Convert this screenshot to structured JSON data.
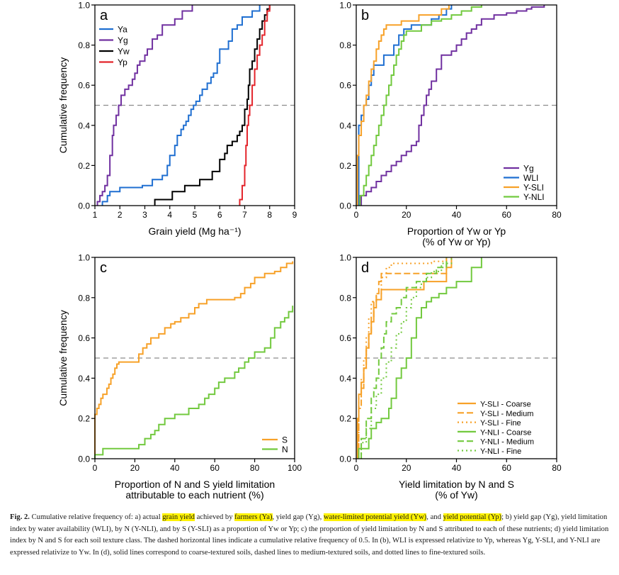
{
  "colors": {
    "orange": "#f7a128",
    "green": "#72c93e",
    "purple": "#7030a0",
    "blue": "#1f6fd1",
    "black": "#000000",
    "red": "#e3242b",
    "dash": "#8c8c8c",
    "highlight": "#fff200"
  },
  "chart_data": [
    {
      "panel": "a",
      "type": "line",
      "step": true,
      "xlabel": "Grain yield (Mg ha⁻¹)",
      "ylabel": "Cumulative frequency",
      "xlim": [
        1,
        9
      ],
      "ylim": [
        0,
        1
      ],
      "xticks": [
        1,
        2,
        3,
        4,
        5,
        6,
        7,
        8,
        9
      ],
      "xtick_labels": [
        "1",
        "2",
        "3",
        "4",
        "5",
        "6",
        "7",
        "8",
        "9"
      ],
      "yticks": [
        0,
        0.2,
        0.4,
        0.6,
        0.8,
        1.0
      ],
      "ytick_labels": [
        "0.0",
        "0.2",
        "0.4",
        "0.6",
        "0.8",
        "1.0"
      ],
      "hline": 0.5,
      "legend_position": "top-left",
      "series": [
        {
          "name": "Ya",
          "color": "#1f6fd1",
          "style": "solid",
          "x": [
            1.3,
            1.5,
            1.6,
            1.8,
            2.0,
            2.4,
            2.9,
            3.3,
            3.7,
            3.9,
            4.0,
            4.2,
            4.3,
            4.45,
            4.55,
            4.65,
            4.75,
            4.85,
            4.95,
            5.05,
            5.2,
            5.3,
            5.5,
            5.65,
            5.75,
            5.9,
            6.0,
            6.35,
            6.5,
            6.7,
            6.9,
            7.3,
            7.6
          ],
          "y": [
            0.02,
            0.05,
            0.07,
            0.07,
            0.09,
            0.09,
            0.1,
            0.13,
            0.15,
            0.2,
            0.25,
            0.3,
            0.35,
            0.38,
            0.4,
            0.42,
            0.45,
            0.48,
            0.5,
            0.52,
            0.55,
            0.58,
            0.61,
            0.64,
            0.66,
            0.71,
            0.78,
            0.82,
            0.88,
            0.9,
            0.94,
            0.97,
            1.0
          ]
        },
        {
          "name": "Yg",
          "color": "#7030a0",
          "style": "solid",
          "x": [
            1.1,
            1.2,
            1.3,
            1.4,
            1.5,
            1.6,
            1.7,
            1.75,
            1.85,
            1.95,
            2.05,
            2.2,
            2.35,
            2.5,
            2.6,
            2.7,
            2.8,
            3.0,
            3.1,
            3.3,
            3.5,
            3.7,
            3.9,
            4.2,
            4.5,
            4.9
          ],
          "y": [
            0.02,
            0.05,
            0.07,
            0.1,
            0.15,
            0.25,
            0.35,
            0.4,
            0.45,
            0.5,
            0.55,
            0.58,
            0.6,
            0.63,
            0.66,
            0.7,
            0.72,
            0.75,
            0.78,
            0.83,
            0.85,
            0.9,
            0.9,
            0.93,
            0.97,
            1.0
          ]
        },
        {
          "name": "Yw",
          "color": "#000000",
          "style": "solid",
          "x": [
            3.4,
            4.1,
            4.6,
            5.2,
            5.7,
            6.0,
            6.2,
            6.3,
            6.5,
            6.7,
            6.8,
            6.9,
            7.0,
            7.1,
            7.15,
            7.2,
            7.3,
            7.4,
            7.5,
            7.6,
            7.7,
            7.8,
            7.9,
            8.0
          ],
          "y": [
            0.03,
            0.07,
            0.1,
            0.13,
            0.17,
            0.23,
            0.26,
            0.3,
            0.32,
            0.35,
            0.37,
            0.4,
            0.48,
            0.53,
            0.6,
            0.68,
            0.72,
            0.78,
            0.83,
            0.88,
            0.92,
            0.95,
            0.98,
            1.0
          ]
        },
        {
          "name": "Yp",
          "color": "#e3242b",
          "style": "solid",
          "x": [
            6.8,
            6.9,
            7.0,
            7.05,
            7.1,
            7.15,
            7.2,
            7.3,
            7.4,
            7.5,
            7.6,
            7.7,
            7.8,
            7.9,
            8.0
          ],
          "y": [
            0.03,
            0.1,
            0.2,
            0.3,
            0.4,
            0.45,
            0.5,
            0.6,
            0.68,
            0.75,
            0.8,
            0.85,
            0.92,
            0.97,
            1.0
          ]
        }
      ]
    },
    {
      "panel": "b",
      "type": "line",
      "step": true,
      "xlabel": "Proportion  of Yw or Yp",
      "xlabel2": "(% of Yw or Yp)",
      "xlim": [
        0,
        80
      ],
      "ylim": [
        0,
        1
      ],
      "xticks": [
        0,
        20,
        40,
        60,
        80
      ],
      "xtick_labels": [
        "0",
        "20",
        "40",
        "60",
        "80"
      ],
      "yticks": [
        0,
        0.2,
        0.4,
        0.6,
        0.8,
        1.0
      ],
      "ytick_labels": [
        "0.0",
        "0.2",
        "0.4",
        "0.6",
        "0.8",
        "1.0"
      ],
      "hline": 0.5,
      "legend_position": "bottom-right",
      "series": [
        {
          "name": "Yg",
          "color": "#7030a0",
          "style": "solid",
          "x": [
            2,
            4,
            6,
            8,
            10,
            12,
            14,
            16,
            18,
            20,
            22,
            24,
            25,
            26,
            27,
            28,
            29,
            30,
            32,
            34,
            36,
            38,
            40,
            42,
            44,
            46,
            48,
            50,
            55,
            60,
            64,
            68,
            70,
            73,
            75
          ],
          "y": [
            0.05,
            0.07,
            0.09,
            0.12,
            0.15,
            0.17,
            0.2,
            0.22,
            0.25,
            0.27,
            0.3,
            0.32,
            0.4,
            0.45,
            0.5,
            0.55,
            0.58,
            0.62,
            0.68,
            0.75,
            0.75,
            0.77,
            0.8,
            0.83,
            0.86,
            0.88,
            0.9,
            0.93,
            0.95,
            0.96,
            0.97,
            0.98,
            0.99,
            0.99,
            1.0
          ]
        },
        {
          "name": "WLI",
          "color": "#1f6fd1",
          "style": "solid",
          "x": [
            1,
            2,
            3,
            4,
            5,
            6,
            7,
            9,
            11,
            13,
            15,
            17,
            19,
            22,
            26,
            30,
            33,
            36,
            38
          ],
          "y": [
            0.4,
            0.45,
            0.5,
            0.53,
            0.6,
            0.65,
            0.7,
            0.7,
            0.75,
            0.75,
            0.8,
            0.85,
            0.88,
            0.9,
            0.9,
            0.93,
            0.95,
            0.98,
            1.0
          ]
        },
        {
          "name": "Y-SLI",
          "color": "#f7a128",
          "style": "solid",
          "x": [
            0.5,
            1,
            2,
            3,
            4,
            5,
            6,
            7,
            8,
            9,
            10,
            11,
            12,
            14,
            16,
            18,
            20,
            25,
            30,
            34,
            37
          ],
          "y": [
            0.25,
            0.35,
            0.42,
            0.5,
            0.55,
            0.62,
            0.68,
            0.72,
            0.78,
            0.82,
            0.85,
            0.88,
            0.9,
            0.9,
            0.9,
            0.92,
            0.92,
            0.95,
            0.95,
            0.98,
            1.0
          ]
        },
        {
          "name": "Y-NLI",
          "color": "#72c93e",
          "style": "solid",
          "x": [
            1.5,
            3,
            4,
            5,
            6,
            7,
            8,
            9,
            10,
            11,
            12,
            13,
            14,
            15,
            16,
            17,
            18,
            19,
            20,
            23,
            26,
            30,
            34,
            38,
            42,
            46,
            50
          ],
          "y": [
            0.05,
            0.1,
            0.15,
            0.2,
            0.25,
            0.3,
            0.35,
            0.4,
            0.45,
            0.5,
            0.55,
            0.6,
            0.65,
            0.7,
            0.75,
            0.78,
            0.82,
            0.85,
            0.87,
            0.87,
            0.9,
            0.92,
            0.93,
            0.95,
            0.97,
            0.99,
            1.0
          ]
        }
      ]
    },
    {
      "panel": "c",
      "type": "line",
      "step": true,
      "xlabel": "Proportion  of N and S yield limitation",
      "xlabel2": "attributable  to each nutrient  (%)",
      "ylabel": "Cumulative frequency",
      "xlim": [
        0,
        100
      ],
      "ylim": [
        0,
        1
      ],
      "xticks": [
        0,
        20,
        40,
        60,
        80,
        100
      ],
      "xtick_labels": [
        "0",
        "20",
        "40",
        "60",
        "80",
        "100"
      ],
      "yticks": [
        0,
        0.2,
        0.4,
        0.6,
        0.8,
        1.0
      ],
      "ytick_labels": [
        "0.0",
        "0.2",
        "0.4",
        "0.6",
        "0.8",
        "1.0"
      ],
      "hline": 0.5,
      "legend_position": "bottom-right",
      "series": [
        {
          "name": "S",
          "color": "#f7a128",
          "style": "solid",
          "x": [
            0,
            1,
            2,
            3,
            4,
            6,
            7,
            8,
            9,
            10,
            11,
            12,
            20,
            22,
            24,
            26,
            27,
            28,
            32,
            35,
            38,
            40,
            43,
            47,
            50,
            52,
            56,
            63,
            70,
            73,
            75,
            78,
            80,
            85,
            90,
            93,
            96,
            99
          ],
          "y": [
            0.22,
            0.25,
            0.27,
            0.3,
            0.32,
            0.35,
            0.37,
            0.4,
            0.42,
            0.45,
            0.47,
            0.48,
            0.48,
            0.52,
            0.55,
            0.57,
            0.57,
            0.6,
            0.62,
            0.65,
            0.67,
            0.68,
            0.7,
            0.72,
            0.75,
            0.77,
            0.79,
            0.79,
            0.8,
            0.82,
            0.85,
            0.87,
            0.9,
            0.92,
            0.93,
            0.95,
            0.97,
            0.98
          ]
        },
        {
          "name": "N",
          "color": "#72c93e",
          "style": "solid",
          "x": [
            0,
            4,
            22,
            25,
            28,
            30,
            32,
            35,
            40,
            45,
            47,
            52,
            55,
            57,
            60,
            62,
            65,
            70,
            72,
            75,
            77,
            80,
            85,
            88,
            90,
            93,
            95,
            97,
            99
          ],
          "y": [
            0.02,
            0.05,
            0.07,
            0.1,
            0.12,
            0.14,
            0.17,
            0.2,
            0.22,
            0.22,
            0.25,
            0.27,
            0.3,
            0.32,
            0.35,
            0.38,
            0.4,
            0.43,
            0.45,
            0.48,
            0.5,
            0.53,
            0.55,
            0.6,
            0.65,
            0.68,
            0.7,
            0.73,
            0.76
          ]
        }
      ]
    },
    {
      "panel": "d",
      "type": "line",
      "step": true,
      "xlabel": "Yield  limitation  by N and  S",
      "xlabel2": "(% of Yw)",
      "xlim": [
        0,
        80
      ],
      "ylim": [
        0,
        1
      ],
      "xticks": [
        0,
        20,
        40,
        60,
        80
      ],
      "xtick_labels": [
        "0",
        "20",
        "40",
        "60",
        "80"
      ],
      "yticks": [
        0,
        0.2,
        0.4,
        0.6,
        0.8,
        1.0
      ],
      "ytick_labels": [
        "0.0",
        "0.2",
        "0.4",
        "0.6",
        "0.8",
        "1.0"
      ],
      "hline": 0.5,
      "legend_position": "bottom-right",
      "series": [
        {
          "name": "Y-SLI - Coarse",
          "color": "#f7a128",
          "style": "solid",
          "x": [
            0.5,
            1,
            2,
            3,
            4,
            5,
            6,
            7,
            8,
            9,
            10,
            13,
            20,
            27,
            36,
            38
          ],
          "y": [
            0.2,
            0.32,
            0.38,
            0.45,
            0.55,
            0.62,
            0.68,
            0.75,
            0.79,
            0.79,
            0.84,
            0.84,
            0.84,
            0.88,
            0.95,
            1.0
          ]
        },
        {
          "name": "Y-SLI - Medium",
          "color": "#f7a128",
          "style": "dashed",
          "x": [
            1,
            2,
            3,
            4,
            5,
            6,
            7,
            8,
            9,
            10,
            11,
            13,
            17,
            36
          ],
          "y": [
            0.25,
            0.35,
            0.45,
            0.55,
            0.62,
            0.7,
            0.78,
            0.82,
            0.88,
            0.92,
            0.92,
            0.92,
            0.92,
            1.0
          ]
        },
        {
          "name": "Y-SLI - Fine",
          "color": "#f7a128",
          "style": "dotted",
          "x": [
            1,
            2,
            3,
            4,
            5,
            6,
            8,
            10,
            12,
            14,
            18,
            24,
            30,
            36
          ],
          "y": [
            0.3,
            0.4,
            0.5,
            0.6,
            0.7,
            0.78,
            0.82,
            0.9,
            0.95,
            0.97,
            0.97,
            0.97,
            0.98,
            1.0
          ]
        },
        {
          "name": "Y-NLI - Coarse",
          "color": "#72c93e",
          "style": "solid",
          "x": [
            1,
            2,
            5,
            6,
            8,
            10,
            13,
            14,
            16,
            18,
            20,
            22,
            24,
            26,
            28,
            30,
            33,
            36,
            40,
            46,
            50
          ],
          "y": [
            0.05,
            0.05,
            0.1,
            0.15,
            0.18,
            0.2,
            0.25,
            0.3,
            0.4,
            0.45,
            0.5,
            0.6,
            0.7,
            0.75,
            0.78,
            0.8,
            0.82,
            0.85,
            0.88,
            0.95,
            1.0
          ]
        },
        {
          "name": "Y-NLI - Medium",
          "color": "#72c93e",
          "style": "dashed",
          "x": [
            2,
            4,
            6,
            7,
            8,
            9,
            10,
            11,
            12,
            14,
            16,
            18,
            20,
            24,
            28,
            32,
            36
          ],
          "y": [
            0.1,
            0.2,
            0.3,
            0.35,
            0.4,
            0.5,
            0.55,
            0.62,
            0.68,
            0.72,
            0.75,
            0.8,
            0.85,
            0.88,
            0.92,
            0.95,
            1.0
          ]
        },
        {
          "name": "Y-NLI - Fine",
          "color": "#72c93e",
          "style": "dotted",
          "x": [
            2,
            4,
            6,
            8,
            10,
            12,
            14,
            16,
            18,
            20,
            22,
            24,
            26,
            28,
            30,
            34,
            38
          ],
          "y": [
            0.08,
            0.15,
            0.25,
            0.32,
            0.4,
            0.48,
            0.55,
            0.62,
            0.68,
            0.75,
            0.8,
            0.85,
            0.88,
            0.9,
            0.93,
            0.97,
            1.0
          ]
        }
      ]
    }
  ],
  "caption": {
    "fig_label": "Fig. 2.",
    "parts": [
      " Cumulative relative frequency of: a) actual ",
      "grain yield",
      " achieved by ",
      "farmers (Ya)",
      ", yield gap (Yg), ",
      "water-limited potential yield (Yw)",
      ", and ",
      "yield potential (Yp)",
      "; b) yield gap (Yg), yield limitation index by water availability (WLI), by N (Y-NLI), and by S (Y-SLI) as a proportion of Yw or Yp; c) the proportion of yield limitation by N and S attributed to each of these nutrients; d) yield limitation index by N and S for each soil texture class. The dashed horizontal lines indicate a cumulative relative frequency of 0.5. In (b), WLI is expressed relativize to Yp, whereas Yg, Y-SLI, and Y-NLI are expressed relativize to Yw. In (d), solid lines correspond to coarse-textured soils, dashed lines to medium-textured soils, and dotted lines to fine-textured soils."
    ]
  }
}
